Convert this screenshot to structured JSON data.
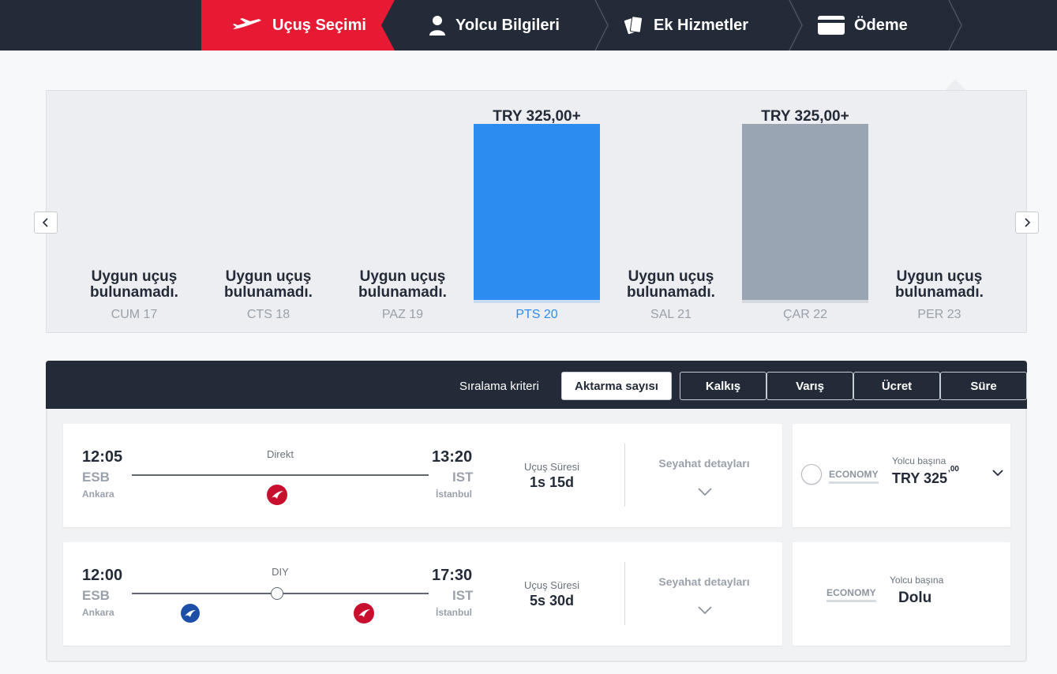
{
  "steps": [
    {
      "label": "Uçuş Seçimi",
      "active": true
    },
    {
      "label": "Yolcu Bilgileri",
      "active": false
    },
    {
      "label": "Ek Hizmetler",
      "active": false
    },
    {
      "label": "Ödeme",
      "active": false
    }
  ],
  "date_chart": {
    "days": [
      {
        "label": "CUM 17",
        "status": "Uygun uçuş bulunamadı.",
        "price": null
      },
      {
        "label": "CTS 18",
        "status": "Uygun uçuş bulunamadı.",
        "price": null
      },
      {
        "label": "PAZ 19",
        "status": "Uygun uçuş bulunamadı.",
        "price": null
      },
      {
        "label": "PTS 20",
        "status": "",
        "price": "TRY 325,00+",
        "selected": true
      },
      {
        "label": "SAL 21",
        "status": "Uygun uçuş bulunamadı.",
        "price": null
      },
      {
        "label": "ÇAR 22",
        "status": "",
        "price": "TRY 325,00+",
        "selected": false
      },
      {
        "label": "PER 23",
        "status": "Uygun uçuş bulunamadı.",
        "price": null
      }
    ],
    "nf_line1": "Uygun uçuş",
    "nf_line2": "bulunamadı.",
    "prev_icon": "chevron-left-icon",
    "next_icon": "chevron-right-icon",
    "selected_color": "#2d8cf0",
    "other_color": "#9aa5b4"
  },
  "sort": {
    "label": "Sıralama kriteri",
    "options": [
      "Aktarma sayısı",
      "Kalkış",
      "Varış",
      "Ücret",
      "Süre"
    ],
    "active": "Aktarma sayısı"
  },
  "flights": [
    {
      "dep_time": "12:05",
      "dep_code": "ESB",
      "dep_city": "Ankara",
      "arr_time": "13:20",
      "arr_code": "IST",
      "arr_city": "İstanbul",
      "route_text": "Direkt",
      "duration_label": "Uçuş Süresi",
      "duration": "1s 15d",
      "details_label": "Seyahat detayları",
      "cabin": "ECONOMY",
      "per_passenger": "Yolcu başına",
      "price_main": "TRY 325",
      "price_cents": ",00"
    },
    {
      "dep_time": "12:00",
      "dep_code": "ESB",
      "dep_city": "Ankara",
      "arr_time": "17:30",
      "arr_code": "IST",
      "arr_city": "İstanbul",
      "route_text": "DIY",
      "duration_label": "Uçuş Süresi",
      "duration": "5s 30d",
      "details_label": "Seyahat detayları",
      "cabin": "ECONOMY",
      "per_passenger": "Yolcu başına",
      "status": "Dolu"
    }
  ]
}
